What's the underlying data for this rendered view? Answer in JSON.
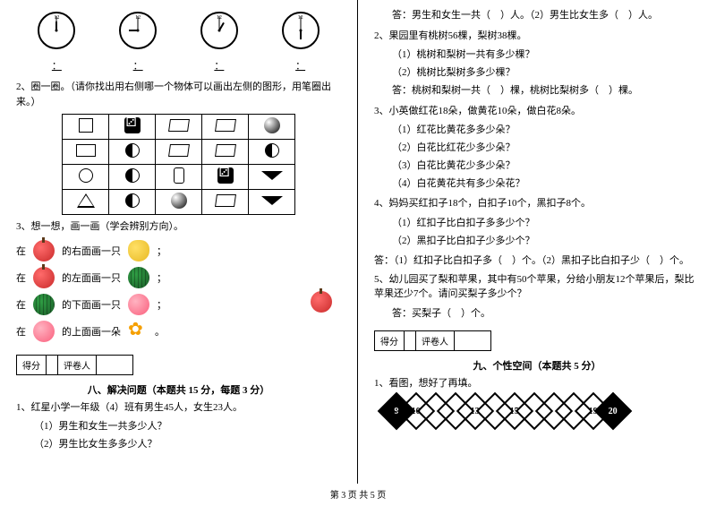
{
  "left": {
    "clocks": [
      {
        "hour_rotation": -180,
        "min_rotation": -180
      },
      {
        "hour_rotation": -90,
        "min_rotation": -180
      },
      {
        "hour_rotation": -150,
        "min_rotation": -180
      },
      {
        "hour_rotation": 0,
        "min_rotation": -180
      }
    ],
    "clock_blank": "：",
    "q2": "2、圈一圈。（请你找出用右侧哪一个物体可以画出左侧的图形，用笔圈出来。）",
    "q3": "3、想一想，画一画（学会辨别方向）。",
    "rows": [
      {
        "pre": "在",
        "mid": "的右面画一只",
        "end": "；"
      },
      {
        "pre": "在",
        "mid": "的左面画一只",
        "end": "；"
      },
      {
        "pre": "在",
        "mid": "的下面画一只",
        "end": "；"
      },
      {
        "pre": "在",
        "mid": "的上面画一朵",
        "end": "。"
      }
    ],
    "score_labels": [
      "得分",
      "评卷人"
    ],
    "section8": "八、解决问题（本题共 15 分，每题 3 分）",
    "p1": "1、红星小学一年级（4）班有男生45人，女生23人。",
    "p1a": "（1）男生和女生一共多少人？",
    "p1b": "（2）男生比女生多多少人？"
  },
  "right": {
    "ans1": "答：男生和女生一共（　）人。（2）男生比女生多（　）人。",
    "p2": "2、果园里有桃树56棵，梨树38棵。",
    "p2a": "（1）桃树和梨树一共有多少棵？",
    "p2b": "（2）桃树比梨树多多少棵？",
    "ans2": "答：桃树和梨树一共（　）棵，桃树比梨树多（　）棵。",
    "p3": "3、小英做红花18朵，做黄花10朵，做白花8朵。",
    "p3a": "（1）红花比黄花多多少朵？",
    "p3b": "（2）白花比红花少多少朵？",
    "p3c": "（3）白花比黄花少多少朵？",
    "p3d": "（4）白花黄花共有多少朵花？",
    "p4": "4、妈妈买红扣子18个，白扣子10个，黑扣子8个。",
    "p4a": "（1）红扣子比白扣子多多少个？",
    "p4b": "（2）黑扣子比白扣子少多少个？",
    "ans4": "答：（1）红扣子比白扣子多（　）个。（2）黑扣子比白扣子少（　）个。",
    "p5": "5、幼儿园买了梨和苹果，其中有50个苹果，分给小朋友12个苹果后，梨比苹果还少7个。请问买梨子多少个？",
    "ans5": "答：买梨子（　）个。",
    "score_labels": [
      "得分",
      "评卷人"
    ],
    "section9": "九、个性空间（本题共 5 分）",
    "p9": "1、看图，想好了再填。",
    "diamonds": [
      "9",
      "10",
      "",
      "",
      "13",
      "",
      "15",
      "",
      "",
      "",
      "19",
      "20"
    ]
  },
  "footer": "第 3 页 共 5 页"
}
